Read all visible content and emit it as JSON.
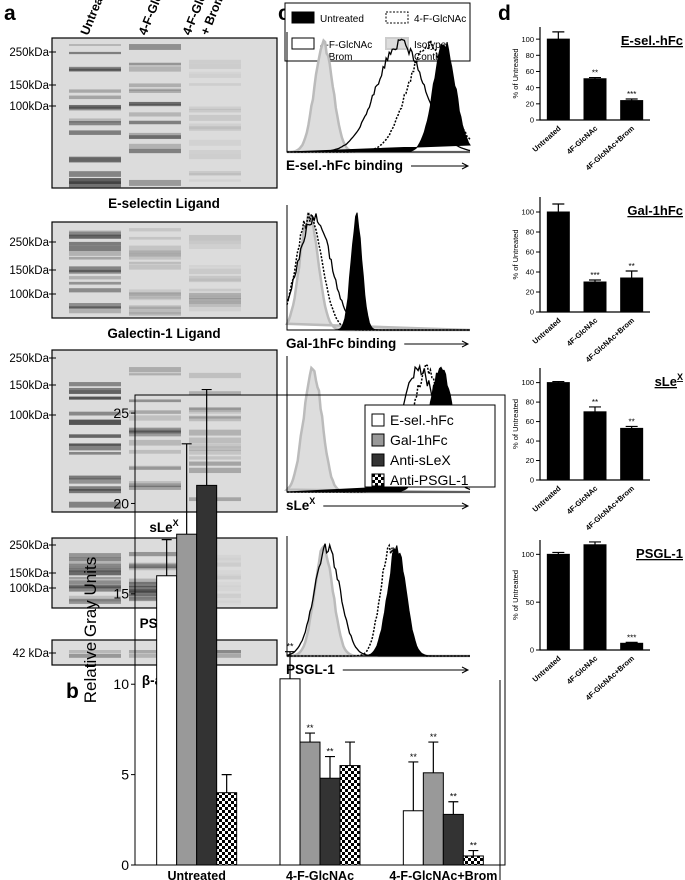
{
  "panel_labels": [
    "a",
    "b",
    "c",
    "d"
  ],
  "panel_a": {
    "lanes": [
      [
        "Untreated"
      ],
      [
        "4-F-GlcNAc"
      ],
      [
        "4-F-GlcNAc",
        "+ Brom"
      ]
    ],
    "blots": [
      {
        "caption": "E-selectin Ligand",
        "markers": [
          "250kDa",
          "150kDa",
          "100kDa"
        ]
      },
      {
        "caption": "Galectin-1 Ligand",
        "markers": [
          "250kDa",
          "150kDa",
          "100kDa"
        ]
      },
      {
        "caption": "sLe",
        "caption_sup": "X",
        "markers": [
          "250kDa",
          "150kDa",
          "100kDa"
        ]
      },
      {
        "caption": "PSGL-1",
        "markers": [
          "250kDa",
          "150kDa",
          "100kDa"
        ]
      },
      {
        "caption": "β-actin",
        "markers": [
          "42 kDa"
        ]
      }
    ]
  },
  "panel_c": {
    "legend": [
      [
        "Untreated"
      ],
      [
        "4-F-GlcNAc"
      ],
      [
        "4-F-GlcNAc",
        "+ Brom"
      ],
      [
        "Isotype",
        "Control"
      ]
    ],
    "histograms": [
      {
        "label": "E-sel.-hFc binding"
      },
      {
        "label": "Gal-1hFc binding"
      },
      {
        "label": "sLe",
        "label_sup": "X"
      },
      {
        "label": "PSGL-1"
      }
    ]
  },
  "chart_data": [
    {
      "type": "bar",
      "y_label": "Relative Gray Units",
      "categories": [
        "Untreated",
        "4-F-GlcNAc",
        "4-F-GlcNAc+Brom"
      ],
      "ylim": [
        0,
        26
      ],
      "yticks": [
        0,
        5,
        10,
        15,
        20,
        25
      ],
      "series": [
        {
          "name": "E-sel.-hFc",
          "color": "#ffffff",
          "values": [
            16,
            10.3,
            3
          ],
          "errors": [
            2,
            1.5,
            2.7
          ],
          "significance": [
            null,
            "**",
            "**"
          ]
        },
        {
          "name": "Gal-1hFc",
          "color": "#999999",
          "values": [
            18.3,
            6.8,
            5.1
          ],
          "errors": [
            5,
            0.5,
            1.7
          ],
          "significance": [
            null,
            "**",
            "**"
          ]
        },
        {
          "name": "Anti-sLeX",
          "color": "#333333",
          "values": [
            21,
            4.8,
            2.8
          ],
          "errors": [
            5.3,
            1.2,
            0.7
          ],
          "significance": [
            null,
            "**",
            "**"
          ]
        },
        {
          "name": "Anti-PSGL-1",
          "color": "#000000",
          "pattern": "checkerboard",
          "values": [
            4,
            5.5,
            0.5
          ],
          "errors": [
            1,
            1.3,
            0.3
          ],
          "significance": [
            null,
            null,
            "**"
          ]
        }
      ]
    },
    {
      "type": "bar",
      "title": "E-sel.-hFc",
      "y_label": "% of Untreated",
      "color": "#000000",
      "categories": [
        "Untreated",
        "4F-GlcNAc",
        "4F-GlcNAc+Brom"
      ],
      "values": [
        100,
        51,
        24
      ],
      "errors": [
        9,
        1.5,
        2
      ],
      "significance": [
        null,
        "**",
        "***"
      ],
      "ylim": [
        0,
        115
      ],
      "yticks": [
        0,
        20,
        40,
        60,
        80,
        100
      ]
    },
    {
      "type": "bar",
      "title": "Gal-1hFc",
      "y_label": "% of Untreated",
      "color": "#000000",
      "categories": [
        "Untreated",
        "4F-GlcNAc",
        "4F-GlcNAc+Brom"
      ],
      "values": [
        100,
        30,
        34
      ],
      "errors": [
        8,
        2,
        7
      ],
      "significance": [
        null,
        "***",
        "**"
      ],
      "ylim": [
        0,
        115
      ],
      "yticks": [
        0,
        20,
        40,
        60,
        80,
        100
      ]
    },
    {
      "type": "bar",
      "title": "sLe",
      "title_sup": "X",
      "y_label": "% of Untreated",
      "color": "#000000",
      "categories": [
        "Untreated",
        "4F-GlcNAc",
        "4F-GlcNAc+Brom"
      ],
      "values": [
        100,
        70,
        53
      ],
      "errors": [
        1,
        5,
        2
      ],
      "significance": [
        null,
        "**",
        "**"
      ],
      "ylim": [
        0,
        115
      ],
      "yticks": [
        0,
        20,
        40,
        60,
        80,
        100
      ]
    },
    {
      "type": "bar",
      "title": "PSGL-1",
      "y_label": "% of Untreated",
      "color": "#000000",
      "categories": [
        "Untreated",
        "4F-GlcNAc",
        "4F-GlcNAc+Brom"
      ],
      "values": [
        100,
        110,
        7
      ],
      "errors": [
        2,
        3,
        1
      ],
      "significance": [
        null,
        null,
        "***"
      ],
      "ylim": [
        0,
        115
      ],
      "yticks": [
        0,
        50,
        100
      ]
    }
  ]
}
